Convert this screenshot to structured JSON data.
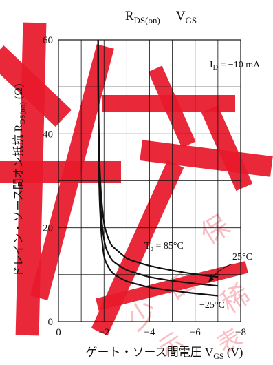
{
  "chart_data": {
    "type": "line",
    "title": {
      "main": "R",
      "main_sub": "DS(on)",
      "sep": "—",
      "second": "V",
      "second_sub": "GS"
    },
    "xlabel": {
      "text": "ゲート・ソース間電圧 V",
      "sub": "GS",
      "unit": " (V)"
    },
    "ylabel": {
      "text": "ドレイン・ソース間オン抵抗 R",
      "sub": "DS(on)",
      "unit": " (Ω)"
    },
    "xlim": [
      0,
      -8
    ],
    "ylim": [
      0,
      60
    ],
    "x_ticks": [
      0,
      -2,
      -4,
      -6,
      -8
    ],
    "x_tick_labels": [
      "0",
      "−2",
      "−4",
      "−6",
      "−8"
    ],
    "y_ticks": [
      0,
      20,
      40,
      60
    ],
    "y_tick_labels": [
      "0",
      "20",
      "40",
      "60"
    ],
    "grid": true,
    "condition": {
      "main": "I",
      "sub": "D",
      "rest": " = −10 mA"
    },
    "curve_labels": [
      {
        "main": "T",
        "sub": "a",
        "rest": " = 85°C"
      },
      {
        "main": "",
        "sub": "",
        "rest": "25°C"
      },
      {
        "main": "",
        "sub": "",
        "rest": "−25°C"
      }
    ],
    "series": [
      {
        "x": [
          -1.74,
          -1.76,
          -1.8,
          -1.85,
          -1.9,
          -2.0,
          -2.1,
          -2.3,
          -2.5,
          -3.0,
          -3.5,
          -4.0,
          -5.0,
          -6.0,
          -7.0
        ],
        "y": [
          60,
          45,
          35,
          29,
          25.5,
          21,
          19,
          16.5,
          15.5,
          13.5,
          12.6,
          11.9,
          10.9,
          10.1,
          9.5
        ]
      },
      {
        "x": [
          -1.74,
          -1.76,
          -1.8,
          -1.85,
          -1.9,
          -2.0,
          -2.1,
          -2.3,
          -2.5,
          -3.0,
          -3.5,
          -4.0,
          -5.0,
          -6.0,
          -7.0
        ],
        "y": [
          60,
          42,
          31,
          25,
          21.5,
          17.5,
          15.5,
          13.5,
          12.5,
          11,
          10.2,
          9.5,
          8.7,
          8.1,
          7.6
        ]
      },
      {
        "x": [
          -1.74,
          -1.76,
          -1.8,
          -1.85,
          -1.9,
          -2.0,
          -2.1,
          -2.3,
          -2.5,
          -3.0,
          -3.5,
          -4.0,
          -5.0,
          -6.0,
          -7.0
        ],
        "y": [
          60,
          38,
          27,
          21.5,
          18,
          14,
          12.5,
          10.8,
          9.9,
          8.6,
          7.9,
          7.3,
          6.6,
          6.0,
          5.5
        ]
      }
    ],
    "watermark": [
      "保",
      "品",
      "稀",
      "少",
      "表",
      "示"
    ],
    "colors": {
      "line": "#111111",
      "grid": "#111111",
      "watermark": "#e8192c"
    }
  }
}
